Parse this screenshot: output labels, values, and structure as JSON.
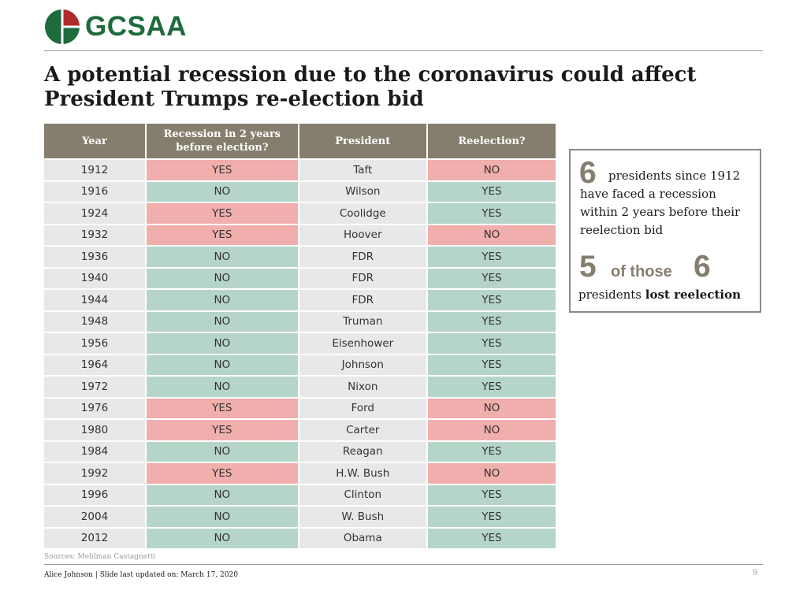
{
  "brand": {
    "name": "GCSAA",
    "green": "#1e6b3c",
    "red": "#b12a2a"
  },
  "slide": {
    "title_line1": "A potential recession due to the coronavirus could affect",
    "title_line2": "President Trumps re-election bid",
    "sources": "Sources: Mehlman Castagnetti",
    "footer": "Alice Johnson | Slide last updated on: March 17, 2020",
    "page_number": "9"
  },
  "colors": {
    "header": "#857e6e",
    "green": "#b6d5c9",
    "red": "#f0aeac",
    "neutral": "#e8e8e8"
  },
  "table": {
    "headers": [
      "Year",
      "Recession in 2 years before election?",
      "President",
      "Reelection?"
    ],
    "rows": [
      [
        "1912",
        "YES",
        "Taft",
        "NO"
      ],
      [
        "1916",
        "NO",
        "Wilson",
        "YES"
      ],
      [
        "1924",
        "YES",
        "Coolidge",
        "YES"
      ],
      [
        "1932",
        "YES",
        "Hoover",
        "NO"
      ],
      [
        "1936",
        "NO",
        "FDR",
        "YES"
      ],
      [
        "1940",
        "NO",
        "FDR",
        "YES"
      ],
      [
        "1944",
        "NO",
        "FDR",
        "YES"
      ],
      [
        "1948",
        "NO",
        "Truman",
        "YES"
      ],
      [
        "1956",
        "NO",
        "Eisenhower",
        "YES"
      ],
      [
        "1964",
        "NO",
        "Johnson",
        "YES"
      ],
      [
        "1972",
        "NO",
        "Nixon",
        "YES"
      ],
      [
        "1976",
        "YES",
        "Ford",
        "NO"
      ],
      [
        "1980",
        "YES",
        "Carter",
        "NO"
      ],
      [
        "1984",
        "NO",
        "Reagan",
        "YES"
      ],
      [
        "1992",
        "YES",
        "H.W. Bush",
        "NO"
      ],
      [
        "1996",
        "NO",
        "Clinton",
        "YES"
      ],
      [
        "2004",
        "NO",
        "W. Bush",
        "YES"
      ],
      [
        "2012",
        "NO",
        "Obama",
        "YES"
      ]
    ]
  },
  "callout": {
    "stat1_number": "6",
    "stat1_text_a": "presidents since 1912",
    "stat1_text_b": "have faced a recession",
    "stat1_text_c": "within 2 years before their",
    "stat1_text_d": "reelection bid",
    "stat2_number_a": "5",
    "stat2_mid": "of those",
    "stat2_number_b": "6",
    "stat2_text": "presidents",
    "stat2_text_bold": "lost reelection"
  }
}
